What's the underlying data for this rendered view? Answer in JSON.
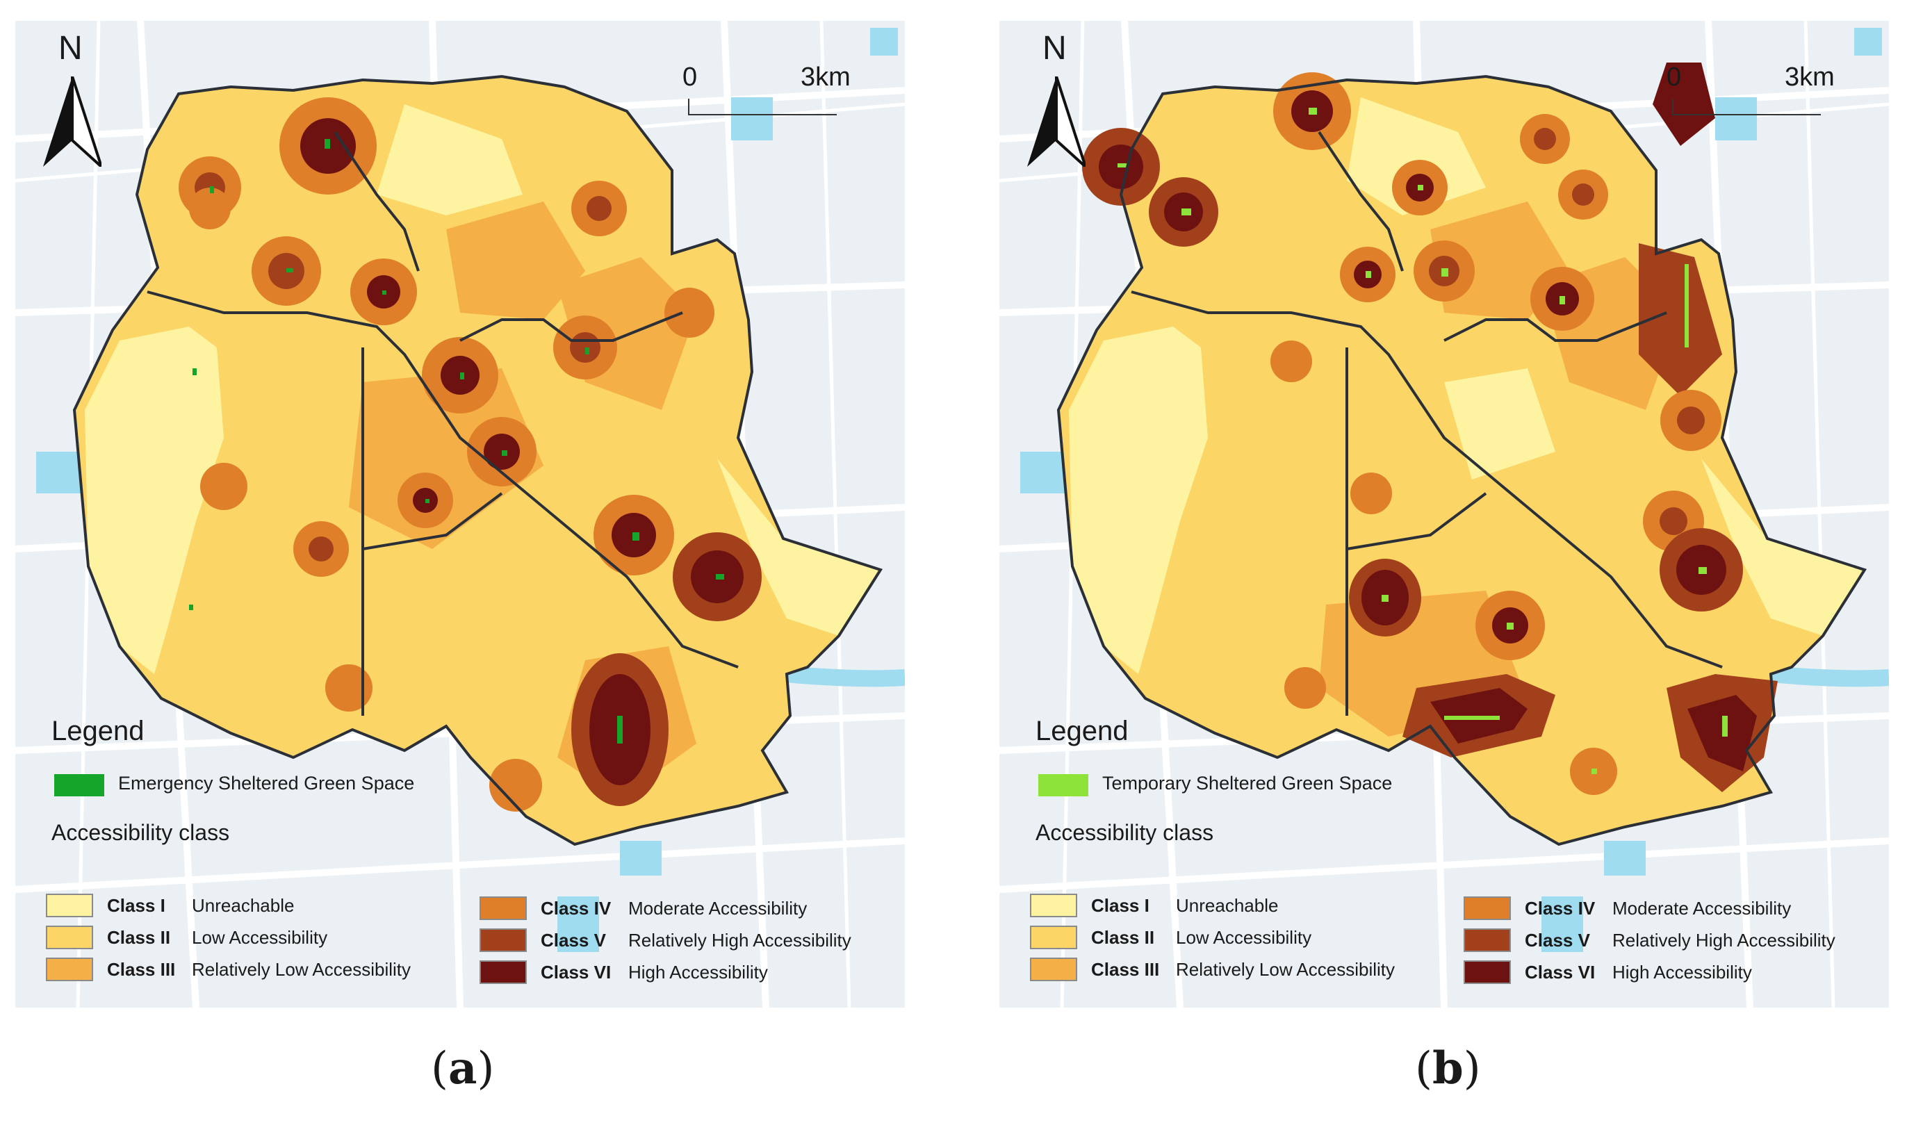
{
  "panels": [
    {
      "id": "a",
      "caption_letter": "a",
      "compass": "N",
      "scale": {
        "start": "0",
        "end": "3km"
      },
      "legend_title": "Legend",
      "green_space_label": "Emergency Sheltered Green Space",
      "green_space_color": "#15a52a",
      "accessibility_title": "Accessibility class",
      "classes": [
        {
          "cls": "Class I",
          "desc": "Unreachable",
          "color": "#fdf3a0"
        },
        {
          "cls": "Class II",
          "desc": "Low Accessibility",
          "color": "#fbd566"
        },
        {
          "cls": "Class III",
          "desc": "Relatively Low Accessibility",
          "color": "#f4b047"
        },
        {
          "cls": "Class IV",
          "desc": "Moderate Accessibility",
          "color": "#df7f2a"
        },
        {
          "cls": "Class V",
          "desc": "Relatively High Accessibility",
          "color": "#a3401c"
        },
        {
          "cls": "Class VI",
          "desc": "High Accessibility",
          "color": "#6d1210"
        }
      ]
    },
    {
      "id": "b",
      "caption_letter": "b",
      "compass": "N",
      "scale": {
        "start": "0",
        "end": "3km"
      },
      "legend_title": "Legend",
      "green_space_label": "Temporary Sheltered Green Space",
      "green_space_color": "#8ee33a",
      "accessibility_title": "Accessibility class",
      "classes": [
        {
          "cls": "Class I",
          "desc": "Unreachable",
          "color": "#fdf3a0"
        },
        {
          "cls": "Class II",
          "desc": "Low Accessibility",
          "color": "#fbd566"
        },
        {
          "cls": "Class III",
          "desc": "Relatively Low Accessibility",
          "color": "#f4b047"
        },
        {
          "cls": "Class IV",
          "desc": "Moderate Accessibility",
          "color": "#df7f2a"
        },
        {
          "cls": "Class V",
          "desc": "Relatively High Accessibility",
          "color": "#a3401c"
        },
        {
          "cls": "Class VI",
          "desc": "High Accessibility",
          "color": "#6d1210"
        }
      ]
    }
  ],
  "colors": {
    "water": "#9fdcef",
    "road": "#ffffff",
    "background": "#eaf0f3",
    "boundary": "#2b3038"
  }
}
